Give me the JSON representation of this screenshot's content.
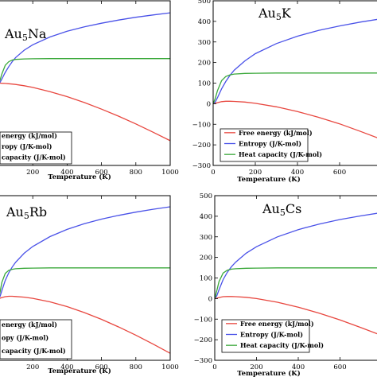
{
  "colors": {
    "free_energy": "#e8473f",
    "entropy": "#4a52e8",
    "heat_capacity": "#3aa83a"
  },
  "chart_data": [
    {
      "type": "line",
      "title": "Au5Na",
      "title_parts": [
        "Au",
        "5",
        "Na"
      ],
      "xlabel": "Temperature (K)",
      "ylabel": "",
      "xlim": [
        0,
        1000
      ],
      "ylim": [
        -500,
        500
      ],
      "xticks": [
        "200",
        "400",
        "600",
        "800",
        "1000"
      ],
      "yticks": [],
      "legend_labels": [
        "energy (kJ/mol)",
        "ropy (J/K-mol)",
        "capacity (J/K-mol)"
      ],
      "series": [
        {
          "name": "Free energy (kJ/mol)",
          "x": [
            0,
            10,
            20,
            40,
            60,
            80,
            100,
            150,
            200,
            300,
            400,
            500,
            600,
            700,
            800,
            900,
            1000
          ],
          "y": [
            0,
            0,
            -1,
            -2,
            -4,
            -6,
            -8,
            -16,
            -26,
            -52,
            -82,
            -118,
            -158,
            -201,
            -248,
            -298,
            -350
          ]
        },
        {
          "name": "Entropy (J/K-mol)",
          "x": [
            0,
            10,
            20,
            40,
            60,
            80,
            100,
            150,
            200,
            300,
            400,
            500,
            600,
            700,
            800,
            900,
            1000
          ],
          "y": [
            0,
            6,
            24,
            65,
            100,
            130,
            155,
            200,
            233,
            280,
            315,
            342,
            364,
            383,
            400,
            414,
            427
          ]
        },
        {
          "name": "Heat capacity (J/K-mol)",
          "x": [
            0,
            10,
            20,
            40,
            60,
            80,
            100,
            150,
            200,
            300,
            400,
            500,
            600,
            700,
            800,
            900,
            1000
          ],
          "y": [
            0,
            20,
            55,
            108,
            130,
            140,
            144,
            147,
            148,
            149,
            149,
            149,
            149,
            149,
            149,
            149,
            149
          ]
        }
      ]
    },
    {
      "type": "line",
      "title": "Au5K",
      "title_parts": [
        "Au",
        "5",
        "K"
      ],
      "xlabel": "Temperature (K)",
      "ylabel": "",
      "xlim": [
        0,
        800
      ],
      "ylim": [
        -300,
        500
      ],
      "xticks": [
        "0",
        "200",
        "400",
        "600",
        "8"
      ],
      "yticks": [
        "500",
        "400",
        "300",
        "200",
        "100",
        "0",
        "−100",
        "−200",
        "−300"
      ],
      "legend_labels": [
        "Free energy (kJ/mol)",
        "Entropy (J/K-mol)",
        "Heat capacity (J/K-mol)"
      ],
      "series": [
        {
          "name": "Free energy (kJ/mol)",
          "x": [
            0,
            10,
            20,
            40,
            60,
            80,
            100,
            150,
            200,
            300,
            400,
            500,
            600,
            700,
            800
          ],
          "y": [
            0,
            2,
            5,
            10,
            12,
            12,
            11,
            8,
            2,
            -15,
            -38,
            -66,
            -98,
            -135,
            -174
          ]
        },
        {
          "name": "Entropy (J/K-mol)",
          "x": [
            0,
            10,
            20,
            40,
            60,
            80,
            100,
            150,
            200,
            300,
            400,
            500,
            600,
            700,
            800
          ],
          "y": [
            0,
            8,
            28,
            72,
            108,
            138,
            163,
            208,
            243,
            292,
            328,
            356,
            378,
            397,
            413
          ]
        },
        {
          "name": "Heat capacity (J/K-mol)",
          "x": [
            0,
            10,
            20,
            40,
            60,
            80,
            100,
            150,
            200,
            300,
            400,
            500,
            600,
            700,
            800
          ],
          "y": [
            0,
            25,
            62,
            112,
            132,
            140,
            144,
            147,
            148,
            149,
            149,
            149,
            149,
            149,
            149
          ]
        }
      ]
    },
    {
      "type": "line",
      "title": "Au5Rb",
      "title_parts": [
        "Au",
        "5",
        "Rb"
      ],
      "xlabel": "Temperature (K)",
      "ylabel": "",
      "xlim": [
        0,
        1000
      ],
      "ylim": [
        -300,
        500
      ],
      "xticks": [
        "200",
        "400",
        "600",
        "800",
        "1000"
      ],
      "yticks": [],
      "legend_labels": [
        "energy (kJ/mol)",
        "opy (J/K-mol)",
        "capacity (J/K-mol)"
      ],
      "series": [
        {
          "name": "Free energy (kJ/mol)",
          "x": [
            0,
            10,
            20,
            40,
            60,
            80,
            100,
            150,
            200,
            300,
            400,
            500,
            600,
            700,
            800,
            900,
            1000
          ],
          "y": [
            0,
            2,
            5,
            9,
            11,
            11,
            10,
            7,
            1,
            -16,
            -39,
            -68,
            -101,
            -138,
            -178,
            -221,
            -266
          ]
        },
        {
          "name": "Entropy (J/K-mol)",
          "x": [
            0,
            10,
            20,
            40,
            60,
            80,
            100,
            150,
            200,
            300,
            400,
            500,
            600,
            700,
            800,
            900,
            1000
          ],
          "y": [
            0,
            12,
            38,
            88,
            125,
            153,
            176,
            220,
            253,
            301,
            336,
            364,
            386,
            404,
            420,
            434,
            446
          ]
        },
        {
          "name": "Heat capacity (J/K-mol)",
          "x": [
            0,
            10,
            20,
            40,
            60,
            80,
            100,
            150,
            200,
            300,
            400,
            500,
            600,
            700,
            800,
            900,
            1000
          ],
          "y": [
            0,
            34,
            78,
            122,
            137,
            142,
            145,
            147,
            148,
            149,
            149,
            149,
            149,
            149,
            149,
            149,
            149
          ]
        }
      ]
    },
    {
      "type": "line",
      "title": "Au5Cs",
      "title_parts": [
        "Au",
        "5",
        "Cs"
      ],
      "xlabel": "Temperature (K)",
      "ylabel": "",
      "xlim": [
        0,
        800
      ],
      "ylim": [
        -300,
        500
      ],
      "xticks": [
        "0",
        "200",
        "400",
        "600",
        "8"
      ],
      "yticks": [
        "500",
        "400",
        "300",
        "200",
        "100",
        "0",
        "−100",
        "−200",
        "−300"
      ],
      "legend_labels": [
        "Free energy (kJ/mol)",
        "Entropy (J/K-mol)",
        "Heat capacity (J/K-mol)"
      ],
      "series": [
        {
          "name": "Free energy (kJ/mol)",
          "x": [
            0,
            10,
            20,
            40,
            60,
            80,
            100,
            150,
            200,
            300,
            400,
            500,
            600,
            700,
            800
          ],
          "y": [
            0,
            2,
            5,
            9,
            10,
            10,
            9,
            6,
            0,
            -18,
            -42,
            -71,
            -104,
            -141,
            -180
          ]
        },
        {
          "name": "Entropy (J/K-mol)",
          "x": [
            0,
            10,
            20,
            40,
            60,
            80,
            100,
            150,
            200,
            300,
            400,
            500,
            600,
            700,
            800
          ],
          "y": [
            0,
            14,
            42,
            92,
            128,
            155,
            177,
            220,
            252,
            300,
            335,
            362,
            384,
            402,
            418
          ]
        },
        {
          "name": "Heat capacity (J/K-mol)",
          "x": [
            0,
            10,
            20,
            40,
            60,
            80,
            100,
            150,
            200,
            300,
            400,
            500,
            600,
            700,
            800
          ],
          "y": [
            0,
            38,
            82,
            124,
            138,
            143,
            145,
            147,
            148,
            149,
            149,
            149,
            149,
            149,
            149
          ]
        }
      ]
    }
  ]
}
